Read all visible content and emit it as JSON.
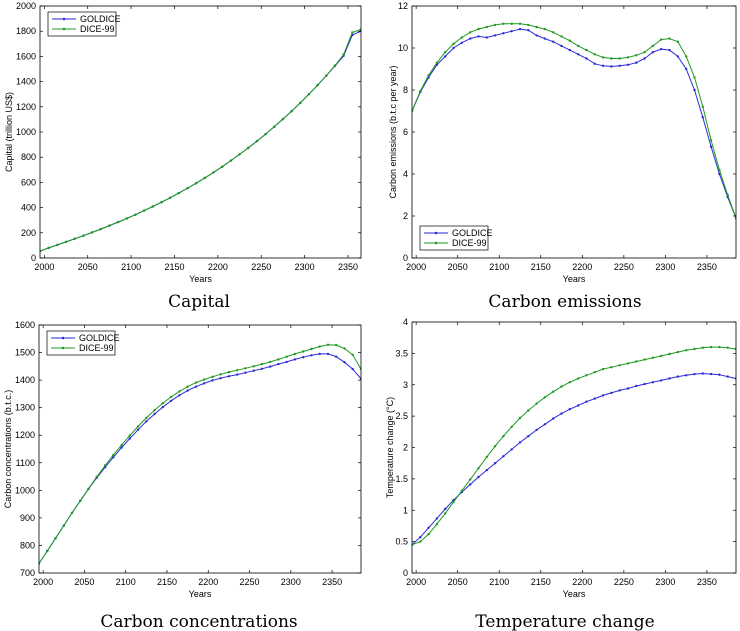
{
  "colors": {
    "goldice": "#2a2ad8",
    "dice99": "#1f9a1f"
  },
  "chart_data": [
    {
      "type": "line",
      "caption": "Capital",
      "xlabel": "Years",
      "ylabel": "Capital (trillion US$)",
      "xlim": [
        1995,
        2365
      ],
      "ylim": [
        0,
        2000
      ],
      "xticks": [
        2000,
        2050,
        2100,
        2150,
        2200,
        2250,
        2300,
        2350
      ],
      "yticks": [
        0,
        200,
        400,
        600,
        800,
        1000,
        1200,
        1400,
        1600,
        1800,
        2000
      ],
      "ytick_labels": [
        "0",
        "200",
        "400",
        "600",
        "800",
        "1000",
        "1200",
        "1400",
        "1600",
        "1800",
        "2000"
      ],
      "legend_position": "top-left",
      "x": [
        1995,
        2005,
        2015,
        2025,
        2035,
        2045,
        2055,
        2065,
        2075,
        2085,
        2095,
        2105,
        2115,
        2125,
        2135,
        2145,
        2155,
        2165,
        2175,
        2185,
        2195,
        2205,
        2215,
        2225,
        2235,
        2245,
        2255,
        2265,
        2275,
        2285,
        2295,
        2305,
        2315,
        2325,
        2335,
        2345,
        2355,
        2365
      ],
      "series": [
        {
          "name": "GOLDICE",
          "values": [
            55,
            80,
            104,
            128,
            152,
            177,
            203,
            229,
            257,
            285,
            314,
            344,
            376,
            409,
            443,
            478,
            515,
            554,
            594,
            636,
            679,
            725,
            773,
            822,
            873,
            927,
            983,
            1041,
            1102,
            1165,
            1231,
            1300,
            1372,
            1447,
            1525,
            1605,
            1770,
            1800
          ]
        },
        {
          "name": "DICE-99",
          "values": [
            55,
            80,
            104,
            128,
            152,
            177,
            203,
            229,
            257,
            285,
            314,
            344,
            376,
            409,
            443,
            478,
            515,
            554,
            594,
            636,
            679,
            725,
            773,
            822,
            873,
            927,
            983,
            1041,
            1102,
            1165,
            1231,
            1300,
            1372,
            1447,
            1528,
            1615,
            1790,
            1815
          ]
        }
      ]
    },
    {
      "type": "line",
      "caption": "Carbon emissions",
      "xlabel": "Years",
      "ylabel": "Carbon emissions (b.t.c per year)",
      "xlim": [
        1995,
        2385
      ],
      "ylim": [
        0,
        12
      ],
      "xticks": [
        2000,
        2050,
        2100,
        2150,
        2200,
        2250,
        2300,
        2350
      ],
      "yticks": [
        0,
        2,
        4,
        6,
        8,
        10,
        12
      ],
      "ytick_labels": [
        "0",
        "2",
        "4",
        "6",
        "8",
        "10",
        "12"
      ],
      "legend_position": "bottom-left",
      "x": [
        1995,
        2005,
        2015,
        2025,
        2035,
        2045,
        2055,
        2065,
        2075,
        2085,
        2095,
        2105,
        2115,
        2125,
        2135,
        2145,
        2155,
        2165,
        2175,
        2185,
        2195,
        2205,
        2215,
        2225,
        2235,
        2245,
        2255,
        2265,
        2275,
        2285,
        2295,
        2305,
        2315,
        2325,
        2335,
        2345,
        2355,
        2365,
        2375,
        2385
      ],
      "series": [
        {
          "name": "GOLDICE",
          "values": [
            7.0,
            7.9,
            8.6,
            9.2,
            9.6,
            10.0,
            10.25,
            10.45,
            10.55,
            10.5,
            10.6,
            10.7,
            10.8,
            10.9,
            10.85,
            10.6,
            10.45,
            10.3,
            10.1,
            9.9,
            9.7,
            9.5,
            9.25,
            9.15,
            9.12,
            9.15,
            9.2,
            9.3,
            9.5,
            9.8,
            9.95,
            9.9,
            9.6,
            9.0,
            8.0,
            6.7,
            5.3,
            4.0,
            2.9,
            1.9
          ]
        },
        {
          "name": "DICE-99",
          "values": [
            7.0,
            7.95,
            8.7,
            9.3,
            9.8,
            10.2,
            10.5,
            10.75,
            10.9,
            11.0,
            11.1,
            11.15,
            11.15,
            11.15,
            11.1,
            11.0,
            10.9,
            10.75,
            10.55,
            10.35,
            10.1,
            9.9,
            9.7,
            9.55,
            9.5,
            9.5,
            9.55,
            9.65,
            9.8,
            10.1,
            10.4,
            10.45,
            10.3,
            9.6,
            8.6,
            7.2,
            5.6,
            4.2,
            3.0,
            1.9
          ]
        }
      ]
    },
    {
      "type": "line",
      "caption": "Carbon concentrations",
      "xlabel": "Years",
      "ylabel": "Carbon concentrations (b.t.c.)",
      "xlim": [
        1995,
        2385
      ],
      "ylim": [
        700,
        1600
      ],
      "xticks": [
        2000,
        2050,
        2100,
        2150,
        2200,
        2250,
        2300,
        2350
      ],
      "yticks": [
        700,
        800,
        900,
        1000,
        1100,
        1200,
        1300,
        1400,
        1500,
        1600
      ],
      "ytick_labels": [
        "700",
        "800",
        "900",
        "1000",
        "1100",
        "1200",
        "1300",
        "1400",
        "1500",
        "1600"
      ],
      "legend_position": "top-left",
      "x": [
        1995,
        2005,
        2015,
        2025,
        2035,
        2045,
        2055,
        2065,
        2075,
        2085,
        2095,
        2105,
        2115,
        2125,
        2135,
        2145,
        2155,
        2165,
        2175,
        2185,
        2195,
        2205,
        2215,
        2225,
        2235,
        2245,
        2255,
        2265,
        2275,
        2285,
        2295,
        2305,
        2315,
        2325,
        2335,
        2345,
        2355,
        2365,
        2375,
        2385
      ],
      "series": [
        {
          "name": "GOLDICE",
          "values": [
            735,
            780,
            826,
            872,
            918,
            962,
            1005,
            1046,
            1084,
            1120,
            1155,
            1188,
            1220,
            1250,
            1277,
            1302,
            1325,
            1345,
            1362,
            1376,
            1388,
            1399,
            1407,
            1414,
            1420,
            1427,
            1434,
            1441,
            1449,
            1458,
            1466,
            1475,
            1483,
            1490,
            1495,
            1495,
            1485,
            1465,
            1440,
            1405
          ]
        },
        {
          "name": "DICE-99",
          "values": [
            735,
            780,
            826,
            872,
            918,
            962,
            1006,
            1049,
            1090,
            1128,
            1164,
            1199,
            1232,
            1263,
            1291,
            1316,
            1339,
            1359,
            1376,
            1391,
            1402,
            1412,
            1421,
            1429,
            1436,
            1443,
            1450,
            1458,
            1466,
            1475,
            1485,
            1495,
            1504,
            1513,
            1522,
            1528,
            1527,
            1515,
            1492,
            1440
          ]
        }
      ]
    },
    {
      "type": "line",
      "caption": "Temperature change",
      "xlabel": "Years",
      "ylabel": "Temperature change (°C)",
      "xlim": [
        1995,
        2385
      ],
      "ylim": [
        0,
        4
      ],
      "xticks": [
        2000,
        2050,
        2100,
        2150,
        2200,
        2250,
        2300,
        2350
      ],
      "yticks": [
        0,
        0.5,
        1,
        1.5,
        2,
        2.5,
        3,
        3.5,
        4
      ],
      "ytick_labels": [
        "0",
        "0.5",
        "1",
        "1.5",
        "2",
        "2.5",
        "3",
        "3.5",
        "4"
      ],
      "legend_position": "none",
      "x": [
        1995,
        2005,
        2015,
        2025,
        2035,
        2045,
        2055,
        2065,
        2075,
        2085,
        2095,
        2105,
        2115,
        2125,
        2135,
        2145,
        2155,
        2165,
        2175,
        2185,
        2195,
        2205,
        2215,
        2225,
        2235,
        2245,
        2255,
        2265,
        2275,
        2285,
        2295,
        2305,
        2315,
        2325,
        2335,
        2345,
        2355,
        2365,
        2375,
        2385
      ],
      "series": [
        {
          "name": "GOLDICE",
          "values": [
            0.45,
            0.57,
            0.72,
            0.87,
            1.02,
            1.16,
            1.29,
            1.41,
            1.53,
            1.64,
            1.75,
            1.86,
            1.97,
            2.08,
            2.18,
            2.28,
            2.37,
            2.46,
            2.54,
            2.61,
            2.67,
            2.73,
            2.78,
            2.83,
            2.87,
            2.91,
            2.94,
            2.98,
            3.01,
            3.04,
            3.07,
            3.1,
            3.13,
            3.15,
            3.17,
            3.18,
            3.17,
            3.16,
            3.13,
            3.1
          ]
        },
        {
          "name": "DICE-99",
          "values": [
            0.45,
            0.5,
            0.62,
            0.78,
            0.95,
            1.13,
            1.31,
            1.49,
            1.67,
            1.85,
            2.02,
            2.18,
            2.33,
            2.47,
            2.59,
            2.7,
            2.8,
            2.89,
            2.97,
            3.04,
            3.1,
            3.15,
            3.2,
            3.25,
            3.28,
            3.31,
            3.34,
            3.37,
            3.4,
            3.43,
            3.46,
            3.49,
            3.52,
            3.55,
            3.57,
            3.59,
            3.6,
            3.6,
            3.59,
            3.57
          ]
        }
      ]
    }
  ]
}
